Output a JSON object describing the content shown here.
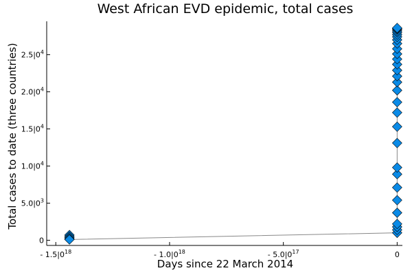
{
  "chart_data": {
    "type": "scatter",
    "title": "West African EVD epidemic, total cases",
    "xlabel": "Days since 22 March 2014",
    "ylabel": "Total cases to date (three countries)",
    "xlim": [
      -1.54e+18,
      2.3e+16
    ],
    "ylim": [
      -700,
      29500
    ],
    "x_ticks": [
      {
        "value": -1.5e+18,
        "label": "- 1.5|0",
        "exp": "18"
      },
      {
        "value": -1e+18,
        "label": "- 1.0|0",
        "exp": "18"
      },
      {
        "value": -5e+17,
        "label": "- 5.0|0",
        "exp": "17"
      },
      {
        "value": 0,
        "label": "0",
        "exp": ""
      }
    ],
    "y_ticks": [
      {
        "value": 0,
        "label": "0",
        "exp": ""
      },
      {
        "value": 5000,
        "label": "5.0|0",
        "exp": "3"
      },
      {
        "value": 10000,
        "label": "1.0|0",
        "exp": "4"
      },
      {
        "value": 15000,
        "label": "1.5|0",
        "exp": "4"
      },
      {
        "value": 20000,
        "label": "2.0|0",
        "exp": "4"
      },
      {
        "value": 25000,
        "label": "2.5|0",
        "exp": "4"
      }
    ],
    "grid": false,
    "legend": "none",
    "marker": "diamond",
    "marker_color": "#0a8ae6",
    "line_color": "#888888",
    "series": [
      {
        "x": [
          -1.44e+18,
          -1.44e+18,
          -1.44e+18,
          -1.44e+18,
          -1.44e+18,
          0,
          0,
          0,
          0,
          0,
          0,
          0,
          0,
          0,
          0,
          0,
          0,
          0,
          0,
          0,
          0,
          0,
          0,
          0,
          0,
          0,
          0,
          0,
          0,
          0,
          0,
          0,
          0,
          0,
          0
        ],
        "y": [
          700,
          500,
          350,
          200,
          100,
          1000,
          1400,
          1800,
          2200,
          3700,
          5400,
          7100,
          8900,
          9800,
          13100,
          15300,
          17200,
          18600,
          20200,
          21300,
          22100,
          22900,
          23700,
          24400,
          25100,
          25800,
          26500,
          27000,
          27400,
          27700,
          28000,
          28200,
          28400,
          28500,
          28600
        ]
      }
    ]
  }
}
